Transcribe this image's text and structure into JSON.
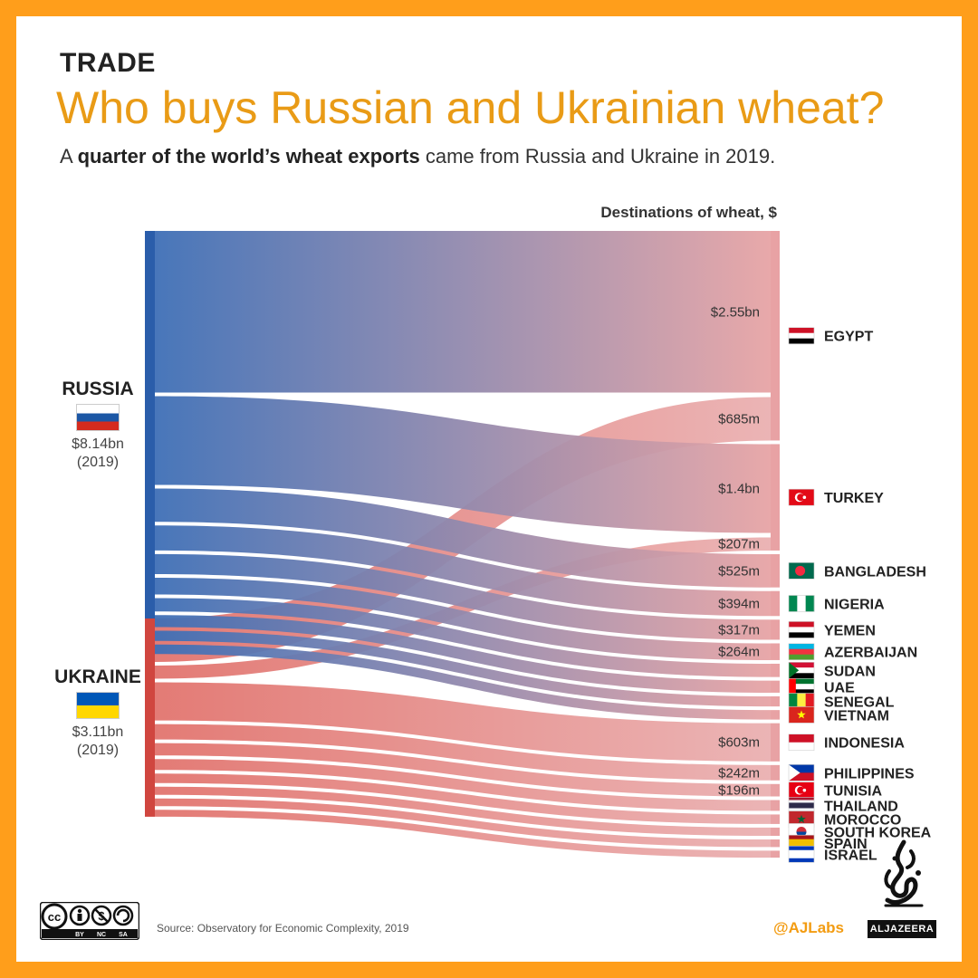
{
  "header": {
    "category": "TRADE",
    "headline": "Who buys Russian and Ukrainian wheat?",
    "subtitle_prefix": "A ",
    "subtitle_bold": "quarter of the world’s wheat exports",
    "subtitle_suffix": " came from Russia and Ukraine in 2019."
  },
  "exporters": [
    {
      "name": "RUSSIA",
      "value": "$8.14bn",
      "year": "(2019)",
      "flag": [
        "#ffffff",
        "#1C57A5",
        "#D52B1E"
      ]
    },
    {
      "name": "UKRAINE",
      "value": "$3.11bn",
      "year": "(2019)",
      "flag": [
        "#0057B7",
        "#FFD700"
      ]
    }
  ],
  "chart_data": {
    "type": "sankey",
    "title": "Destinations of wheat, $",
    "sources": [
      "RUSSIA",
      "UKRAINE"
    ],
    "source_totals_bn": {
      "RUSSIA": 8.14,
      "UKRAINE": 3.11
    },
    "destinations": [
      "EGYPT",
      "TURKEY",
      "BANGLADESH",
      "NIGERIA",
      "YEMEN",
      "AZERBAIJAN",
      "SUDAN",
      "UAE",
      "SENEGAL",
      "VIETNAM",
      "INDONESIA",
      "PHILIPPINES",
      "TUNISIA",
      "THAILAND",
      "MOROCCO",
      "SOUTH KOREA",
      "SPAIN",
      "ISRAEL"
    ],
    "links": [
      {
        "from": "RUSSIA",
        "to": "EGYPT",
        "value_bn": 2.55,
        "label": "$2.55bn"
      },
      {
        "from": "UKRAINE",
        "to": "EGYPT",
        "value_bn": 0.685,
        "label": "$685m"
      },
      {
        "from": "RUSSIA",
        "to": "TURKEY",
        "value_bn": 1.4,
        "label": "$1.4bn"
      },
      {
        "from": "UKRAINE",
        "to": "TURKEY",
        "value_bn": 0.207,
        "label": "$207m"
      },
      {
        "from": "RUSSIA",
        "to": "BANGLADESH",
        "value_bn": 0.525,
        "label": "$525m"
      },
      {
        "from": "RUSSIA",
        "to": "NIGERIA",
        "value_bn": 0.394,
        "label": "$394m"
      },
      {
        "from": "RUSSIA",
        "to": "YEMEN",
        "value_bn": 0.317,
        "label": "$317m"
      },
      {
        "from": "RUSSIA",
        "to": "AZERBAIJAN",
        "value_bn": 0.264,
        "label": "$264m"
      },
      {
        "from": "RUSSIA",
        "to": "SUDAN",
        "value_bn": 0.21,
        "label": ""
      },
      {
        "from": "RUSSIA",
        "to": "UAE",
        "value_bn": 0.19,
        "label": ""
      },
      {
        "from": "RUSSIA",
        "to": "SENEGAL",
        "value_bn": 0.16,
        "label": ""
      },
      {
        "from": "RUSSIA",
        "to": "VIETNAM",
        "value_bn": 0.15,
        "label": ""
      },
      {
        "from": "UKRAINE",
        "to": "INDONESIA",
        "value_bn": 0.603,
        "label": "$603m"
      },
      {
        "from": "UKRAINE",
        "to": "PHILIPPINES",
        "value_bn": 0.242,
        "label": "$242m"
      },
      {
        "from": "UKRAINE",
        "to": "TUNISIA",
        "value_bn": 0.196,
        "label": "$196m"
      },
      {
        "from": "UKRAINE",
        "to": "THAILAND",
        "value_bn": 0.17,
        "label": ""
      },
      {
        "from": "UKRAINE",
        "to": "MOROCCO",
        "value_bn": 0.15,
        "label": ""
      },
      {
        "from": "UKRAINE",
        "to": "SOUTH KOREA",
        "value_bn": 0.13,
        "label": ""
      },
      {
        "from": "UKRAINE",
        "to": "SPAIN",
        "value_bn": 0.12,
        "label": ""
      },
      {
        "from": "UKRAINE",
        "to": "ISRAEL",
        "value_bn": 0.11,
        "label": ""
      }
    ],
    "colors": {
      "RUSSIA": "#3E6FB6",
      "UKRAINE": "#DD5E57",
      "destination": "#E7A4A5"
    }
  },
  "dest_flags": {
    "EGYPT": {
      "type": "h",
      "colors": [
        "#CE1126",
        "#ffffff",
        "#000000"
      ]
    },
    "TURKEY": {
      "type": "crescent",
      "colors": [
        "#E30A17",
        "#ffffff"
      ]
    },
    "BANGLADESH": {
      "type": "disc",
      "colors": [
        "#006A4E",
        "#F42A41"
      ]
    },
    "NIGERIA": {
      "type": "v",
      "colors": [
        "#008751",
        "#ffffff",
        "#008751"
      ]
    },
    "YEMEN": {
      "type": "h",
      "colors": [
        "#CE1126",
        "#ffffff",
        "#000000"
      ]
    },
    "AZERBAIJAN": {
      "type": "h",
      "colors": [
        "#00B5E2",
        "#EF3340",
        "#509E2F"
      ]
    },
    "SUDAN": {
      "type": "hoist",
      "colors": [
        "#D21034",
        "#ffffff",
        "#000000",
        "#007229"
      ]
    },
    "UAE": {
      "type": "hoist",
      "colors": [
        "#00732F",
        "#ffffff",
        "#000000",
        "#FF0000"
      ]
    },
    "SENEGAL": {
      "type": "v",
      "colors": [
        "#00853F",
        "#FDEF42",
        "#E31B23"
      ]
    },
    "VIETNAM": {
      "type": "star",
      "colors": [
        "#DA251D",
        "#FFFF00"
      ]
    },
    "INDONESIA": {
      "type": "h",
      "colors": [
        "#CE1126",
        "#ffffff"
      ]
    },
    "PHILIPPINES": {
      "type": "hoist",
      "colors": [
        "#0038A8",
        "#CE1126",
        "#ffffff",
        "#ffffff"
      ]
    },
    "TUNISIA": {
      "type": "crescent",
      "colors": [
        "#E70013",
        "#ffffff"
      ]
    },
    "THAILAND": {
      "type": "h",
      "colors": [
        "#A51931",
        "#F4F5F8",
        "#2D2A4A",
        "#2D2A4A",
        "#F4F5F8",
        "#A51931"
      ]
    },
    "MOROCCO": {
      "type": "star",
      "colors": [
        "#C1272D",
        "#006233"
      ]
    },
    "SOUTH KOREA": {
      "type": "disc",
      "colors": [
        "#ffffff",
        "#CD2E3A"
      ]
    },
    "SPAIN": {
      "type": "h",
      "colors": [
        "#AA151B",
        "#F1BF00",
        "#F1BF00",
        "#AA151B"
      ]
    },
    "ISRAEL": {
      "type": "h",
      "colors": [
        "#0038B8",
        "#ffffff",
        "#ffffff",
        "#0038B8"
      ]
    }
  },
  "footer": {
    "source": "Source: Observatory for Economic Complexity, 2019",
    "handle": "@AJLabs",
    "wordmark": "ALJAZEERA",
    "license": [
      "BY",
      "NC",
      "SA"
    ]
  }
}
